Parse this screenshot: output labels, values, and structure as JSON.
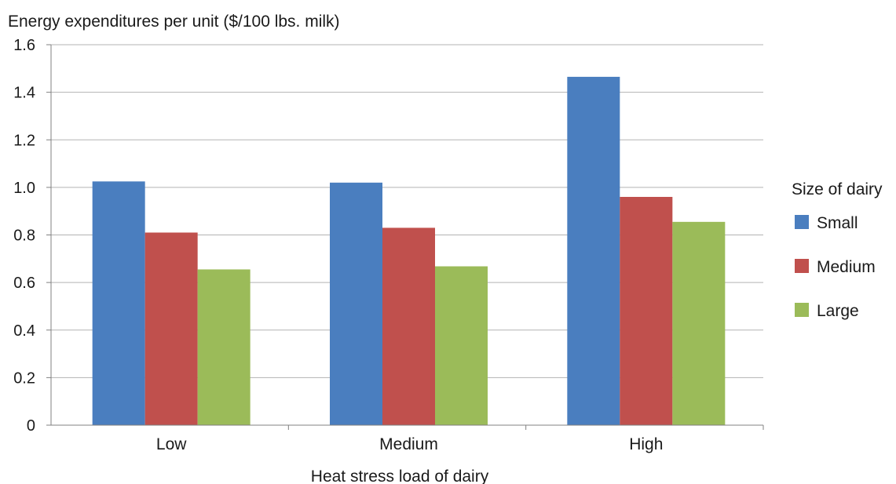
{
  "chart_data": {
    "type": "bar",
    "ylabel": "Energy expenditures per unit ($/100 lbs. milk)",
    "xlabel": "Heat stress load of dairy",
    "categories": [
      "Low",
      "Medium",
      "High"
    ],
    "series": [
      {
        "name": "Small",
        "color": "#4a7ebf",
        "values": [
          1.025,
          1.02,
          1.465
        ]
      },
      {
        "name": "Medium",
        "color": "#c0504d",
        "values": [
          0.81,
          0.83,
          0.96
        ]
      },
      {
        "name": "Large",
        "color": "#9bbb59",
        "values": [
          0.655,
          0.668,
          0.855
        ]
      }
    ],
    "ylim": [
      0,
      1.6
    ],
    "yticks": [
      0,
      0.2,
      0.4,
      0.6,
      0.8,
      1.0,
      1.2,
      1.4,
      1.6
    ],
    "ytick_labels": [
      "0",
      "0.2",
      "0.4",
      "0.6",
      "0.8",
      "1.0",
      "1.2",
      "1.4",
      "1.6"
    ],
    "grid": true,
    "legend_title": "Size of dairy",
    "legend_position": "right"
  }
}
